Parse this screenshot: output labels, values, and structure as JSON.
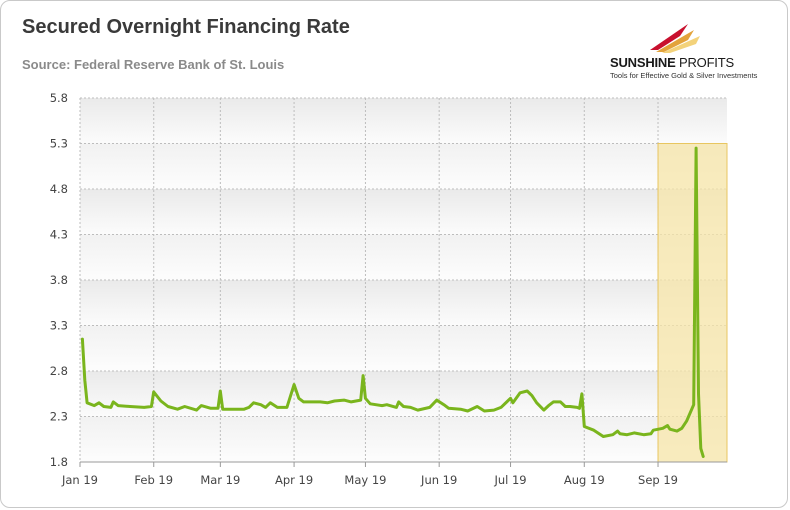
{
  "header": {
    "title": "Secured Overnight Financing Rate",
    "source": "Source: Federal Reserve Bank of St. Louis"
  },
  "logo": {
    "name_bold": "SUNSHINE",
    "name_light": "PROFITS",
    "tagline": "Tools for Effective Gold & Silver Investments"
  },
  "colors": {
    "line": "#7ab51d",
    "highlight_fill": "#f7e6a8",
    "highlight_border": "#e8c660",
    "grid": "#bdbdbd"
  },
  "chart_data": {
    "type": "line",
    "title": "Secured Overnight Financing Rate",
    "xlabel": "",
    "ylabel": "",
    "ylim": [
      1.8,
      5.8
    ],
    "yticks": [
      "1.8",
      "2.3",
      "2.8",
      "3.3",
      "3.8",
      "4.3",
      "4.8",
      "5.3",
      "5.8"
    ],
    "xticks": [
      "Jan 19",
      "Feb 19",
      "Mar 19",
      "Apr 19",
      "May 19",
      "Jun 19",
      "Jul 19",
      "Aug 19",
      "Sep 19"
    ],
    "xlim": [
      "2019-01-01",
      "2019-09-30"
    ],
    "grid": "dashed",
    "highlight": {
      "from": "2019-09-01",
      "to": "2019-09-30",
      "ymax": 5.3
    },
    "series": [
      {
        "points": [
          [
            "2019-01-02",
            3.15
          ],
          [
            "2019-01-03",
            2.7
          ],
          [
            "2019-01-04",
            2.45
          ],
          [
            "2019-01-07",
            2.42
          ],
          [
            "2019-01-09",
            2.45
          ],
          [
            "2019-01-11",
            2.41
          ],
          [
            "2019-01-14",
            2.4
          ],
          [
            "2019-01-15",
            2.46
          ],
          [
            "2019-01-17",
            2.42
          ],
          [
            "2019-01-22",
            2.41
          ],
          [
            "2019-01-28",
            2.4
          ],
          [
            "2019-01-31",
            2.41
          ],
          [
            "2019-02-01",
            2.57
          ],
          [
            "2019-02-04",
            2.47
          ],
          [
            "2019-02-07",
            2.41
          ],
          [
            "2019-02-11",
            2.38
          ],
          [
            "2019-02-14",
            2.41
          ],
          [
            "2019-02-19",
            2.37
          ],
          [
            "2019-02-21",
            2.42
          ],
          [
            "2019-02-25",
            2.39
          ],
          [
            "2019-02-28",
            2.39
          ],
          [
            "2019-03-01",
            2.58
          ],
          [
            "2019-03-02",
            2.38
          ],
          [
            "2019-03-07",
            2.38
          ],
          [
            "2019-03-11",
            2.38
          ],
          [
            "2019-03-13",
            2.4
          ],
          [
            "2019-03-15",
            2.45
          ],
          [
            "2019-03-18",
            2.43
          ],
          [
            "2019-03-20",
            2.4
          ],
          [
            "2019-03-22",
            2.45
          ],
          [
            "2019-03-25",
            2.4
          ],
          [
            "2019-03-29",
            2.4
          ],
          [
            "2019-04-01",
            2.65
          ],
          [
            "2019-04-03",
            2.5
          ],
          [
            "2019-04-05",
            2.46
          ],
          [
            "2019-04-12",
            2.46
          ],
          [
            "2019-04-15",
            2.45
          ],
          [
            "2019-04-18",
            2.47
          ],
          [
            "2019-04-22",
            2.48
          ],
          [
            "2019-04-25",
            2.46
          ],
          [
            "2019-04-29",
            2.48
          ],
          [
            "2019-04-30",
            2.75
          ],
          [
            "2019-05-01",
            2.5
          ],
          [
            "2019-05-03",
            2.44
          ],
          [
            "2019-05-08",
            2.42
          ],
          [
            "2019-05-10",
            2.43
          ],
          [
            "2019-05-14",
            2.4
          ],
          [
            "2019-05-15",
            2.46
          ],
          [
            "2019-05-17",
            2.41
          ],
          [
            "2019-05-20",
            2.4
          ],
          [
            "2019-05-23",
            2.37
          ],
          [
            "2019-05-28",
            2.4
          ],
          [
            "2019-05-31",
            2.48
          ],
          [
            "2019-06-03",
            2.43
          ],
          [
            "2019-06-05",
            2.39
          ],
          [
            "2019-06-10",
            2.38
          ],
          [
            "2019-06-13",
            2.36
          ],
          [
            "2019-06-17",
            2.41
          ],
          [
            "2019-06-20",
            2.36
          ],
          [
            "2019-06-24",
            2.37
          ],
          [
            "2019-06-27",
            2.4
          ],
          [
            "2019-07-01",
            2.5
          ],
          [
            "2019-07-02",
            2.45
          ],
          [
            "2019-07-05",
            2.56
          ],
          [
            "2019-07-08",
            2.58
          ],
          [
            "2019-07-10",
            2.53
          ],
          [
            "2019-07-12",
            2.45
          ],
          [
            "2019-07-15",
            2.37
          ],
          [
            "2019-07-17",
            2.42
          ],
          [
            "2019-07-19",
            2.46
          ],
          [
            "2019-07-22",
            2.46
          ],
          [
            "2019-07-24",
            2.41
          ],
          [
            "2019-07-26",
            2.41
          ],
          [
            "2019-07-29",
            2.4
          ],
          [
            "2019-07-30",
            2.39
          ],
          [
            "2019-07-31",
            2.55
          ],
          [
            "2019-08-01",
            2.19
          ],
          [
            "2019-08-05",
            2.15
          ],
          [
            "2019-08-09",
            2.08
          ],
          [
            "2019-08-13",
            2.1
          ],
          [
            "2019-08-15",
            2.14
          ],
          [
            "2019-08-16",
            2.11
          ],
          [
            "2019-08-19",
            2.1
          ],
          [
            "2019-08-22",
            2.12
          ],
          [
            "2019-08-26",
            2.1
          ],
          [
            "2019-08-29",
            2.11
          ],
          [
            "2019-08-30",
            2.15
          ],
          [
            "2019-09-03",
            2.17
          ],
          [
            "2019-09-05",
            2.2
          ],
          [
            "2019-09-06",
            2.16
          ],
          [
            "2019-09-09",
            2.14
          ],
          [
            "2019-09-11",
            2.17
          ],
          [
            "2019-09-13",
            2.25
          ],
          [
            "2019-09-16",
            2.43
          ],
          [
            "2019-09-17",
            5.25
          ],
          [
            "2019-09-18",
            2.55
          ],
          [
            "2019-09-19",
            1.95
          ],
          [
            "2019-09-20",
            1.86
          ]
        ]
      }
    ]
  }
}
